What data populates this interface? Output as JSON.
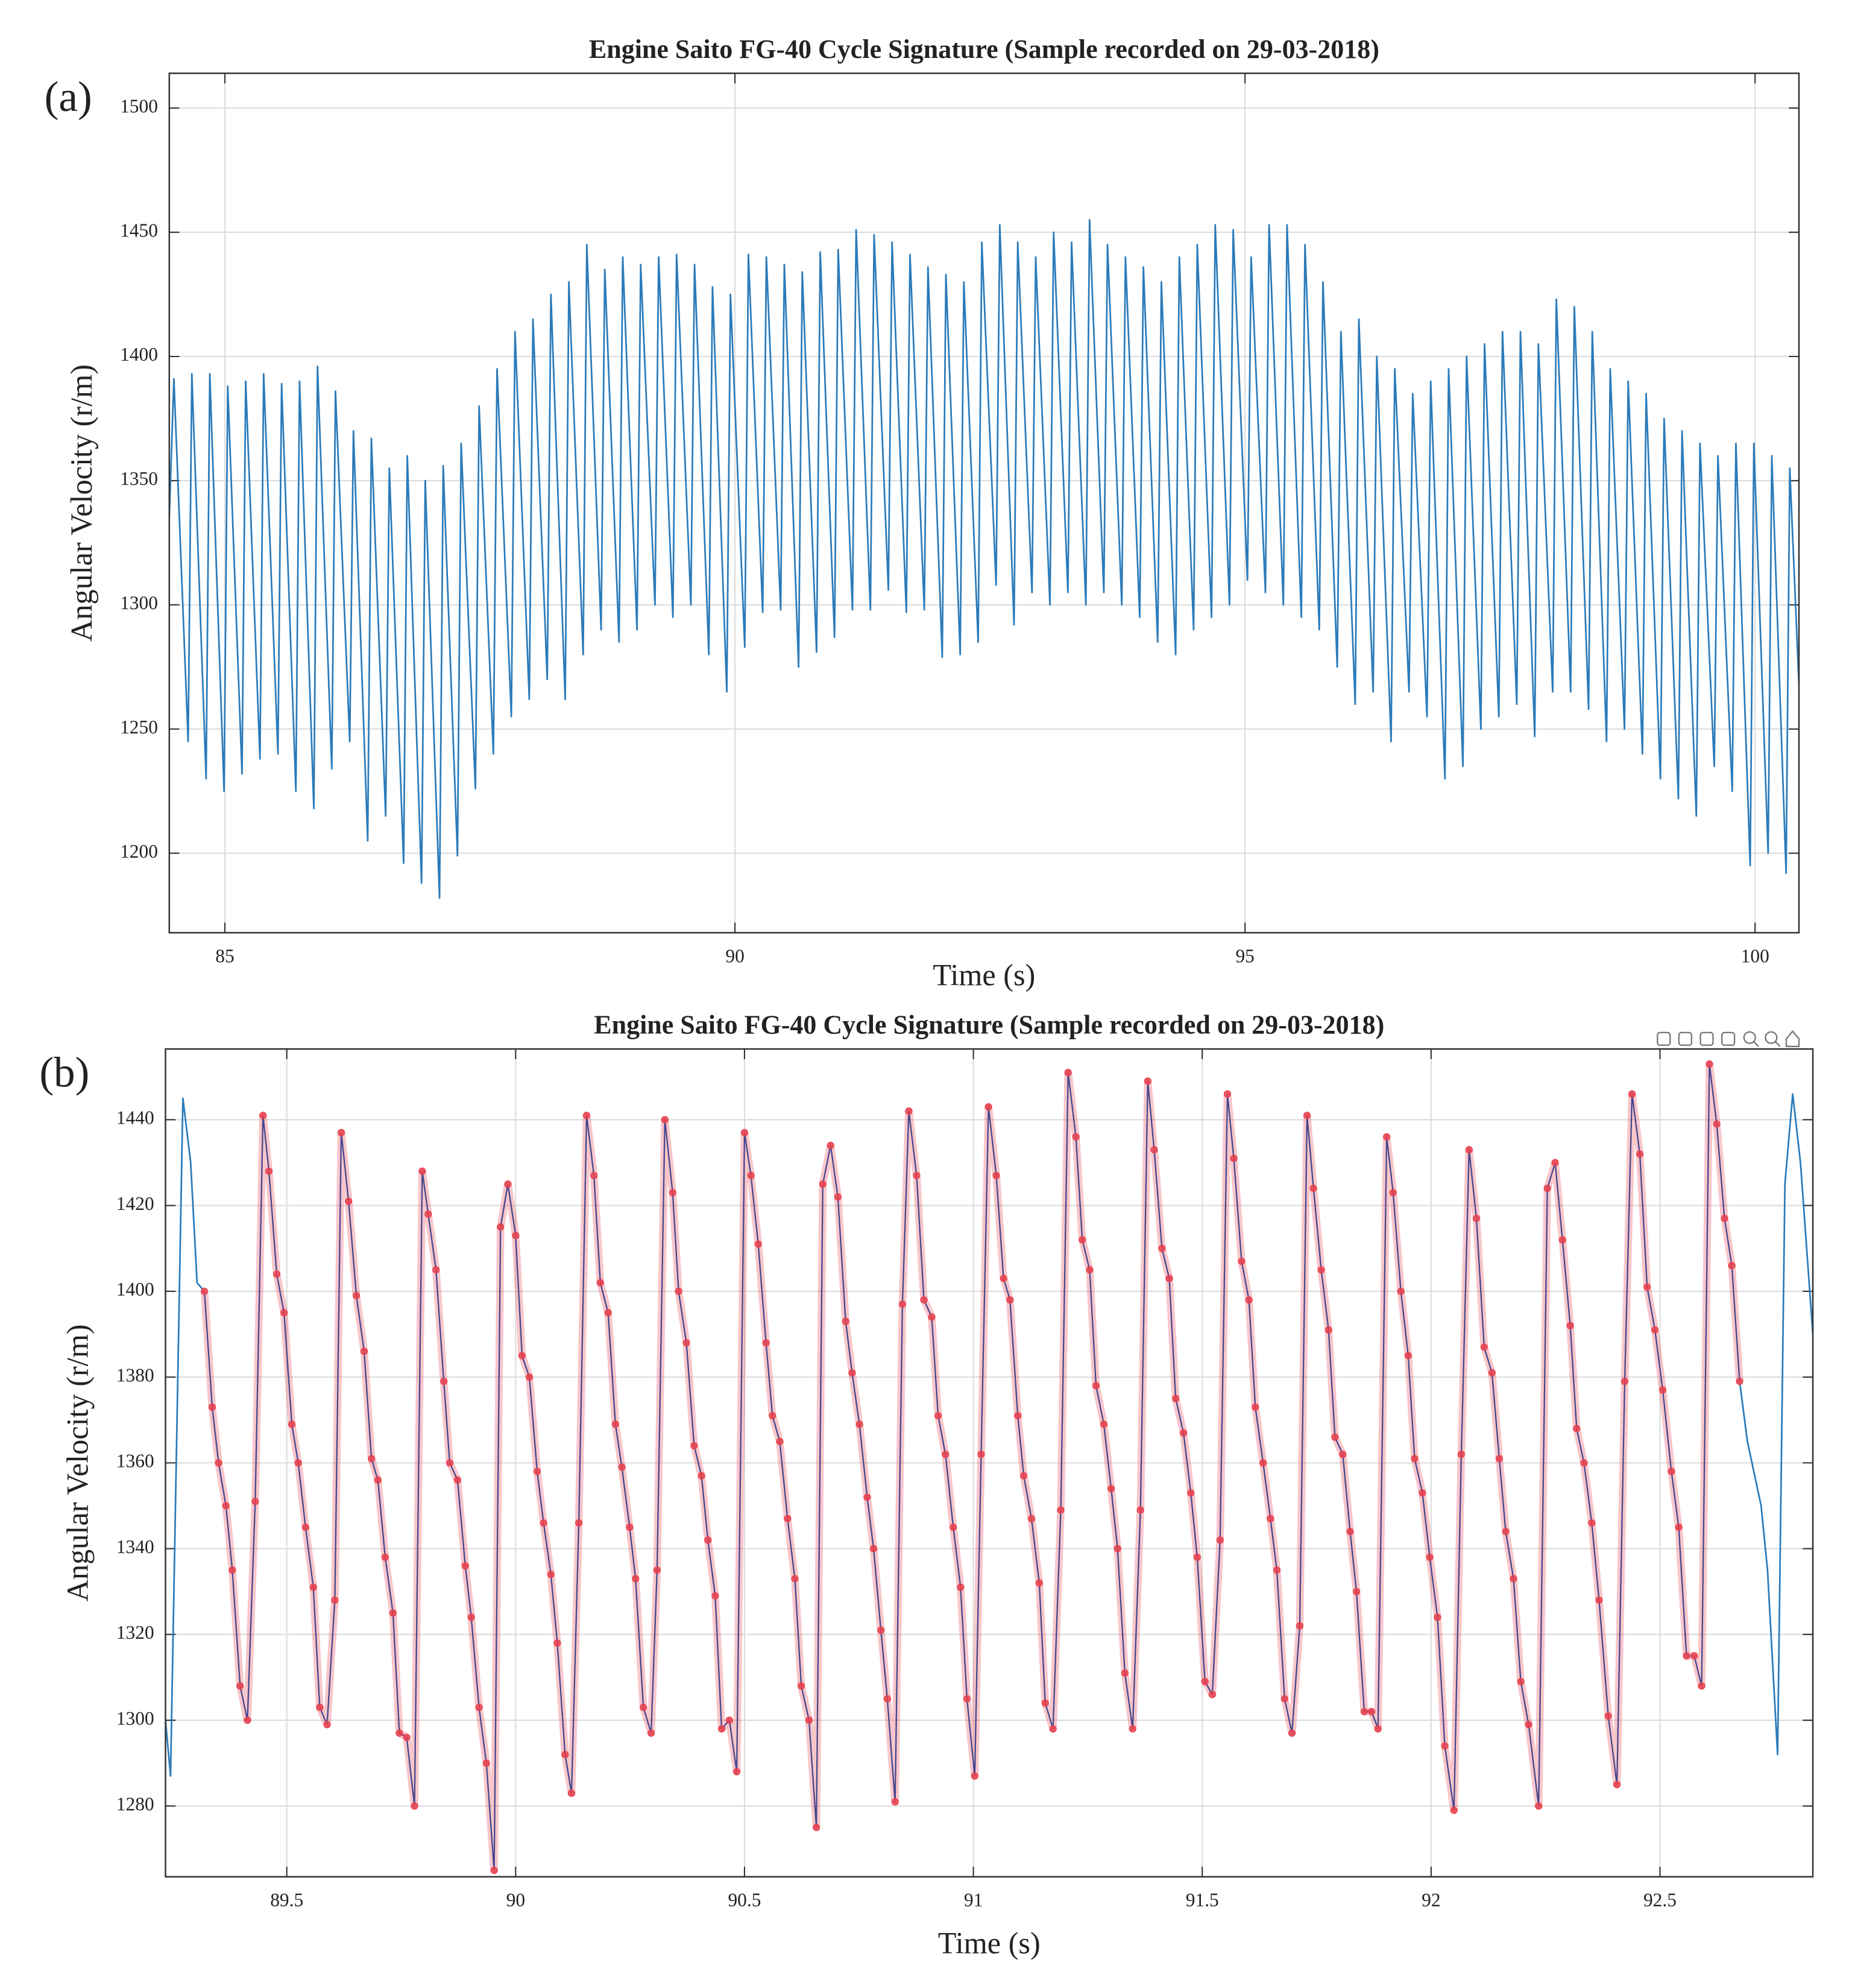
{
  "chart_data": [
    {
      "type": "line",
      "panel_label": "(a)",
      "title": "Engine Saito FG-40 Cycle Signature (Sample recorded on 29-03-2018)",
      "xlabel": "Time (s)",
      "ylabel": "Angular Velocity (r/m)",
      "xlim": [
        84.455,
        100.43
      ],
      "xticks": [
        85,
        90,
        95,
        100
      ],
      "ylim": [
        1168,
        1514
      ],
      "yticks": [
        1200,
        1250,
        1300,
        1350,
        1400,
        1450,
        1500
      ],
      "grid": true,
      "series": [
        {
          "color": "#2b7bba",
          "x": [
            84.455,
            84.5,
            84.64,
            84.676,
            84.816,
            84.852,
            84.992,
            85.028,
            85.168,
            85.204,
            85.344,
            85.38,
            85.52,
            85.556,
            85.696,
            85.732,
            85.872,
            85.908,
            86.048,
            86.084,
            86.224,
            86.26,
            86.4,
            86.436,
            86.576,
            86.612,
            86.752,
            86.788,
            86.928,
            86.964,
            87.104,
            87.14,
            87.28,
            87.316,
            87.456,
            87.492,
            87.632,
            87.668,
            87.808,
            87.844,
            87.984,
            88.02,
            88.16,
            88.196,
            88.336,
            88.372,
            88.512,
            88.548,
            88.688,
            88.724,
            88.864,
            88.9,
            89.04,
            89.076,
            89.216,
            89.252,
            89.392,
            89.428,
            89.568,
            89.604,
            89.744,
            89.78,
            89.92,
            89.956,
            90.096,
            90.132,
            90.272,
            90.308,
            90.448,
            90.484,
            90.624,
            90.66,
            90.8,
            90.836,
            90.976,
            91.012,
            91.152,
            91.188,
            91.328,
            91.364,
            91.504,
            91.54,
            91.68,
            91.716,
            91.856,
            91.892,
            92.032,
            92.068,
            92.208,
            92.244,
            92.384,
            92.42,
            92.56,
            92.596,
            92.736,
            92.772,
            92.912,
            92.948,
            93.088,
            93.124,
            93.264,
            93.3,
            93.44,
            93.476,
            93.616,
            93.652,
            93.792,
            93.828,
            93.968,
            94.004,
            94.144,
            94.18,
            94.32,
            94.356,
            94.496,
            94.532,
            94.672,
            94.708,
            94.848,
            94.884,
            95.024,
            95.06,
            95.2,
            95.236,
            95.376,
            95.412,
            95.552,
            95.588,
            95.728,
            95.764,
            95.904,
            95.94,
            96.08,
            96.116,
            96.256,
            96.292,
            96.432,
            96.468,
            96.608,
            96.644,
            96.784,
            96.82,
            96.96,
            96.996,
            97.136,
            97.172,
            97.312,
            97.348,
            97.488,
            97.524,
            97.664,
            97.7,
            97.84,
            97.876,
            98.016,
            98.052,
            98.192,
            98.228,
            98.368,
            98.404,
            98.544,
            98.58,
            98.72,
            98.756,
            98.896,
            98.932,
            99.072,
            99.108,
            99.248,
            99.284,
            99.424,
            99.46,
            99.6,
            99.636,
            99.776,
            99.812,
            99.952,
            99.988,
            100.128,
            100.164,
            100.304,
            100.34,
            100.43
          ],
          "values": [
            1335,
            1391,
            1245,
            1393,
            1230,
            1393,
            1225,
            1388,
            1232,
            1390,
            1238,
            1393,
            1240,
            1389,
            1225,
            1390,
            1218,
            1396,
            1234,
            1386,
            1245,
            1370,
            1205,
            1367,
            1215,
            1355,
            1196,
            1360,
            1188,
            1350,
            1182,
            1356,
            1199,
            1365,
            1226,
            1380,
            1240,
            1395,
            1255,
            1410,
            1262,
            1415,
            1270,
            1425,
            1262,
            1430,
            1280,
            1445,
            1290,
            1435,
            1285,
            1440,
            1290,
            1437,
            1300,
            1440,
            1295,
            1441,
            1300,
            1437,
            1280,
            1428,
            1265,
            1425,
            1283,
            1441,
            1297,
            1440,
            1298,
            1437,
            1275,
            1434,
            1281,
            1442,
            1287,
            1443,
            1298,
            1451,
            1298,
            1449,
            1306,
            1446,
            1297,
            1441,
            1298,
            1436,
            1279,
            1433,
            1280,
            1430,
            1285,
            1446,
            1308,
            1453,
            1292,
            1446,
            1305,
            1440,
            1300,
            1450,
            1305,
            1446,
            1300,
            1455,
            1305,
            1445,
            1300,
            1440,
            1295,
            1436,
            1285,
            1430,
            1280,
            1440,
            1290,
            1445,
            1295,
            1453,
            1300,
            1451,
            1310,
            1440,
            1305,
            1453,
            1300,
            1453,
            1295,
            1445,
            1290,
            1430,
            1275,
            1410,
            1260,
            1415,
            1265,
            1400,
            1245,
            1395,
            1265,
            1385,
            1255,
            1390,
            1230,
            1395,
            1235,
            1400,
            1250,
            1405,
            1255,
            1410,
            1260,
            1410,
            1247,
            1405,
            1265,
            1423,
            1265,
            1420,
            1258,
            1410,
            1245,
            1395,
            1250,
            1390,
            1240,
            1385,
            1230,
            1375,
            1222,
            1370,
            1215,
            1365,
            1235,
            1360,
            1225,
            1365,
            1195,
            1365,
            1200,
            1360,
            1192,
            1355,
            1268
          ]
        }
      ]
    },
    {
      "type": "line",
      "panel_label": "(b)",
      "title": "Engine Saito FG-40 Cycle Signature (Sample recorded on 29-03-2018)",
      "xlabel": "Time (s)",
      "ylabel": "Angular Velocity (r/m)",
      "xlim": [
        89.235,
        92.834
      ],
      "xticks": [
        89.5,
        90,
        90.5,
        91,
        91.5,
        92,
        92.5
      ],
      "ylim": [
        1263.5,
        1456.5
      ],
      "yticks": [
        1280,
        1300,
        1320,
        1340,
        1360,
        1380,
        1400,
        1420,
        1440
      ],
      "grid": true,
      "toolbar": true,
      "series": [
        {
          "color": "#2b7bba",
          "x": [
            89.235,
            89.246,
            89.273,
            89.29,
            89.304,
            89.32,
            null,
            92.674,
            92.691,
            92.721,
            92.735,
            92.757,
            92.773,
            92.79,
            92.807,
            92.834
          ],
          "values": [
            1300,
            1287,
            1445,
            1430,
            1402,
            1400,
            null,
            1379,
            1365,
            1350,
            1335,
            1292,
            1425,
            1446,
            1430,
            1390
          ]
        },
        {
          "color": "#e8414e",
          "line_color": "#46478f",
          "markers": true,
          "x": [
            89.32,
            89.337,
            89.351,
            89.367,
            89.381,
            89.398,
            89.414,
            89.431,
            89.448,
            89.461,
            89.478,
            89.494,
            89.511,
            89.525,
            89.541,
            89.558,
            89.572,
            89.588,
            89.605,
            89.619,
            89.635,
            89.652,
            89.669,
            89.685,
            89.699,
            89.715,
            89.732,
            89.746,
            89.762,
            89.779,
            89.796,
            89.809,
            89.826,
            89.843,
            89.856,
            89.873,
            89.89,
            89.903,
            89.92,
            89.936,
            89.953,
            89.967,
            89.983,
            90.0,
            90.014,
            90.03,
            90.047,
            90.061,
            90.077,
            90.091,
            90.108,
            90.122,
            90.138,
            90.155,
            90.171,
            90.185,
            90.202,
            90.218,
            90.232,
            90.249,
            90.262,
            90.279,
            90.296,
            90.309,
            90.326,
            90.343,
            90.356,
            90.373,
            90.39,
            90.406,
            90.42,
            90.436,
            90.45,
            90.467,
            90.483,
            90.5,
            90.514,
            90.53,
            90.547,
            90.561,
            90.577,
            90.594,
            90.61,
            90.624,
            90.641,
            90.657,
            90.671,
            90.688,
            90.704,
            90.721,
            90.735,
            90.751,
            90.768,
            90.782,
            90.798,
            90.812,
            90.829,
            90.845,
            90.859,
            90.876,
            90.892,
            90.909,
            90.923,
            90.939,
            90.956,
            90.972,
            90.986,
            91.003,
            91.017,
            91.033,
            91.05,
            91.066,
            91.08,
            91.097,
            91.11,
            91.127,
            91.144,
            91.157,
            91.174,
            91.191,
            91.207,
            91.224,
            91.238,
            91.254,
            91.268,
            91.285,
            91.301,
            91.315,
            91.331,
            91.348,
            91.365,
            91.381,
            91.395,
            91.412,
            91.428,
            91.442,
            91.459,
            91.475,
            91.489,
            91.506,
            91.522,
            91.539,
            91.555,
            91.569,
            91.586,
            91.602,
            91.616,
            91.633,
            91.649,
            91.663,
            91.68,
            91.696,
            91.713,
            91.729,
            91.743,
            91.76,
            91.776,
            91.79,
            91.807,
            91.823,
            91.837,
            91.854,
            91.87,
            91.884,
            91.903,
            91.917,
            91.934,
            91.95,
            91.964,
            91.981,
            91.997,
            92.014,
            92.03,
            92.05,
            92.066,
            92.083,
            92.099,
            92.116,
            92.133,
            92.149,
            92.163,
            92.18,
            92.196,
            92.213,
            92.235,
            92.254,
            92.271,
            92.287,
            92.304,
            92.318,
            92.334,
            92.351,
            92.367,
            92.387,
            92.406,
            92.423,
            92.439,
            92.456,
            92.472,
            92.489,
            92.506,
            92.525,
            92.541,
            92.558,
            92.575,
            92.591,
            92.608,
            92.624,
            92.641,
            92.657,
            92.674
          ],
          "values": [
            1400,
            1373,
            1360,
            1350,
            1335,
            1308,
            1300,
            1351,
            1441,
            1428,
            1404,
            1395,
            1369,
            1360,
            1345,
            1331,
            1303,
            1299,
            1328,
            1437,
            1421,
            1399,
            1386,
            1361,
            1356,
            1338,
            1325,
            1297,
            1296,
            1280,
            1428,
            1418,
            1405,
            1379,
            1360,
            1356,
            1336,
            1324,
            1303,
            1290,
            1265,
            1415,
            1425,
            1413,
            1385,
            1380,
            1358,
            1346,
            1334,
            1318,
            1292,
            1283,
            1346,
            1441,
            1427,
            1402,
            1395,
            1369,
            1359,
            1345,
            1333,
            1303,
            1297,
            1335,
            1440,
            1423,
            1400,
            1388,
            1364,
            1357,
            1342,
            1329,
            1298,
            1300,
            1288,
            1437,
            1427,
            1411,
            1388,
            1371,
            1365,
            1347,
            1333,
            1308,
            1300,
            1275,
            1425,
            1434,
            1422,
            1393,
            1381,
            1369,
            1352,
            1340,
            1321,
            1305,
            1281,
            1397,
            1442,
            1427,
            1398,
            1394,
            1371,
            1362,
            1345,
            1331,
            1305,
            1287,
            1362,
            1443,
            1427,
            1403,
            1398,
            1371,
            1357,
            1347,
            1332,
            1304,
            1298,
            1349,
            1451,
            1436,
            1412,
            1405,
            1378,
            1369,
            1354,
            1340,
            1311,
            1298,
            1349,
            1449,
            1433,
            1410,
            1403,
            1375,
            1367,
            1353,
            1338,
            1309,
            1306,
            1342,
            1446,
            1431,
            1407,
            1398,
            1373,
            1360,
            1347,
            1335,
            1305,
            1297,
            1322,
            1441,
            1424,
            1405,
            1391,
            1366,
            1362,
            1344,
            1330,
            1302,
            1302,
            1298,
            1436,
            1423,
            1400,
            1385,
            1361,
            1353,
            1338,
            1324,
            1294,
            1279,
            1362,
            1433,
            1417,
            1387,
            1381,
            1361,
            1344,
            1333,
            1309,
            1299,
            1280,
            1424,
            1430,
            1412,
            1392,
            1368,
            1360,
            1346,
            1328,
            1301,
            1285,
            1379,
            1446,
            1432,
            1401,
            1391,
            1377,
            1358,
            1345,
            1315,
            1315,
            1308,
            1453,
            1439,
            1417,
            1406,
            1379
          ]
        }
      ]
    }
  ]
}
